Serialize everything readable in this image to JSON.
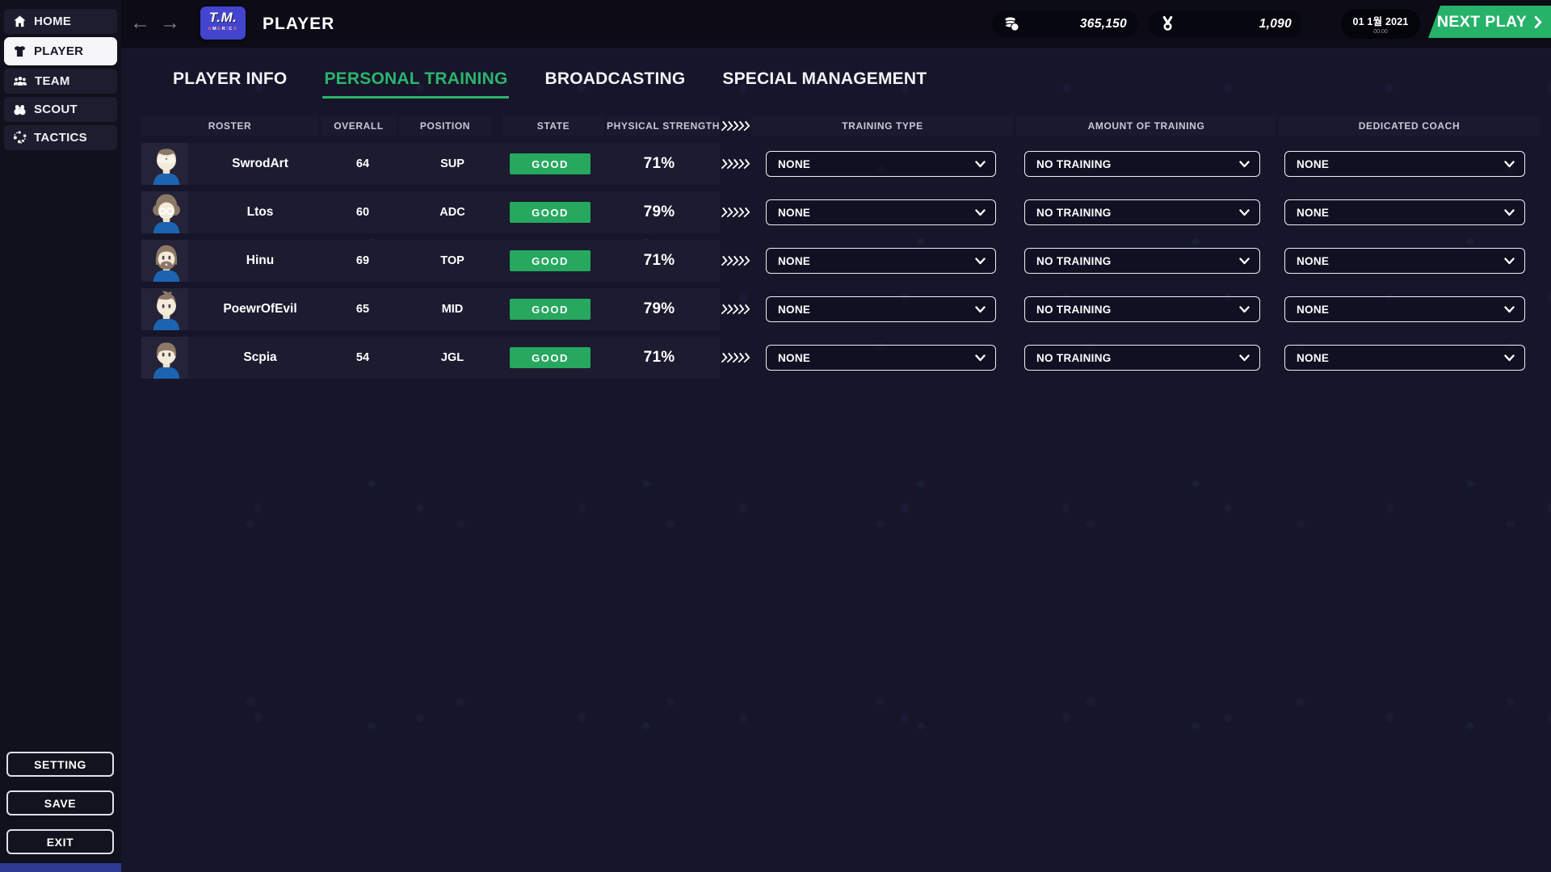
{
  "topbar": {
    "back_label": "←",
    "forward_label": "→",
    "logo_primary": "T.M.",
    "logo_secondary": "AMERICA",
    "title": "PLAYER",
    "money_icon": "coins-icon",
    "money_value": "365,150",
    "medal_icon": "medal-icon",
    "medal_value": "1,090",
    "date_value": "01 1월 2021",
    "time_value": "00:00",
    "next_play_label": "NEXT PLAY"
  },
  "sidebar": {
    "items": [
      {
        "label": "HOME",
        "icon": "home-icon",
        "active": false
      },
      {
        "label": "PLAYER",
        "icon": "jersey-icon",
        "active": true
      },
      {
        "label": "TEAM",
        "icon": "team-icon",
        "active": false
      },
      {
        "label": "SCOUT",
        "icon": "binoculars-icon",
        "active": false
      },
      {
        "label": "TACTICS",
        "icon": "tactics-icon",
        "active": false
      }
    ],
    "footer_buttons": [
      {
        "label": "SETTING"
      },
      {
        "label": "SAVE"
      },
      {
        "label": "EXIT"
      }
    ]
  },
  "tabs": [
    {
      "label": "PLAYER INFO",
      "active": false
    },
    {
      "label": "PERSONAL TRAINING",
      "active": true
    },
    {
      "label": "BROADCASTING",
      "active": false
    },
    {
      "label": "SPECIAL MANAGEMENT",
      "active": false
    }
  ],
  "table": {
    "headers": {
      "roster": "ROSTER",
      "overall": "OVERALL",
      "position": "POSITION",
      "state": "STATE",
      "physical_strength": "PHYSICAL STRENGTH",
      "training_type": "TRAINING TYPE",
      "amount_of_training": "AMOUNT OF TRAINING",
      "dedicated_coach": "DEDICATED COACH"
    },
    "separator_icon": "fast-forward-icon",
    "rows": [
      {
        "name": "SwrodArt",
        "overall": "64",
        "position": "SUP",
        "state": "GOOD",
        "physical_strength": "71%",
        "training_type": "NONE",
        "amount_of_training": "NO TRAINING",
        "dedicated_coach": "NONE",
        "avatar": "sunglasses"
      },
      {
        "name": "Ltos",
        "overall": "60",
        "position": "ADC",
        "state": "GOOD",
        "physical_strength": "79%",
        "training_type": "NONE",
        "amount_of_training": "NO TRAINING",
        "dedicated_coach": "NONE",
        "avatar": "afro-glasses"
      },
      {
        "name": "Hinu",
        "overall": "69",
        "position": "TOP",
        "state": "GOOD",
        "physical_strength": "71%",
        "training_type": "NONE",
        "amount_of_training": "NO TRAINING",
        "dedicated_coach": "NONE",
        "avatar": "beard"
      },
      {
        "name": "PoewrOfEvil",
        "overall": "65",
        "position": "MID",
        "state": "GOOD",
        "physical_strength": "79%",
        "training_type": "NONE",
        "amount_of_training": "NO TRAINING",
        "dedicated_coach": "NONE",
        "avatar": "spiky"
      },
      {
        "name": "Scpia",
        "overall": "54",
        "position": "JGL",
        "state": "GOOD",
        "physical_strength": "71%",
        "training_type": "NONE",
        "amount_of_training": "NO TRAINING",
        "dedicated_coach": "NONE",
        "avatar": "bowl"
      }
    ]
  },
  "colors": {
    "accent_green": "#2bb56c",
    "badge_green": "#26a85f",
    "next_play_green": "#26b268",
    "logo_blue": "#4345cf",
    "bottom_strip_blue": "#2c3b91",
    "topbar_bg": "#0c0b16",
    "content_bg": "#16152a",
    "row_band_bg": "#1c1b30"
  }
}
